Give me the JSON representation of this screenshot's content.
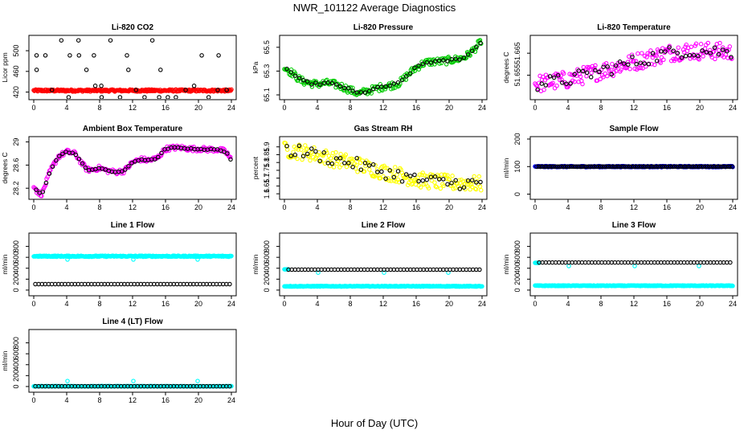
{
  "figure_title": "NWR_101122  Average Diagnostics",
  "xaxis_title": "Hour of Day (UTC)",
  "colors": {
    "black": "#000000",
    "red": "#ff0000",
    "green": "#00cc00",
    "magenta": "#ff00ff",
    "yellow": "#ffff00",
    "blue": "#0000ff",
    "cyan": "#00ffff"
  },
  "chart_data": [
    {
      "type": "scatter",
      "title": "Li-820 CO2",
      "ylabel": "Licor ppm",
      "xlim": [
        0,
        24
      ],
      "ylim": [
        410,
        525
      ],
      "xticks": [
        0,
        4,
        8,
        12,
        16,
        20,
        24
      ],
      "yticks": [
        420,
        460,
        500
      ],
      "series": [
        {
          "name": "all",
          "color": "#ff0000",
          "kind": "band",
          "y_center": 423,
          "y_spread": 2
        },
        {
          "name": "level1",
          "color": "#000000",
          "kind": "levels",
          "levels": [
            410,
            424,
            432,
            463,
            491,
            520
          ],
          "x_step": 1.0
        }
      ]
    },
    {
      "type": "scatter",
      "title": "Li-820 Pressure",
      "ylabel": "kPa",
      "xlim": [
        0,
        24
      ],
      "ylim": [
        65.08,
        65.58
      ],
      "xticks": [
        0,
        4,
        8,
        12,
        16,
        20,
        24
      ],
      "yticks": [
        65.1,
        65.3,
        65.5
      ],
      "series": [
        {
          "name": "all",
          "color": "#00cc00",
          "kind": "curve",
          "x": [
            0,
            1,
            2,
            3,
            4,
            5,
            6,
            7,
            8,
            9,
            10,
            11,
            12,
            13,
            14,
            15,
            16,
            17,
            18,
            19,
            20,
            21,
            22,
            23,
            24
          ],
          "y": [
            65.33,
            65.28,
            65.22,
            65.2,
            65.19,
            65.2,
            65.19,
            65.17,
            65.14,
            65.11,
            65.13,
            65.15,
            65.17,
            65.18,
            65.2,
            65.27,
            65.33,
            65.37,
            65.38,
            65.38,
            65.39,
            65.4,
            65.42,
            65.48,
            65.56
          ],
          "spread": 0.03
        },
        {
          "name": "level1",
          "color": "#000000",
          "kind": "curve_sparse",
          "x_step": 0.5,
          "spread": 0.01
        }
      ]
    },
    {
      "type": "scatter",
      "title": "Li-820 Temperature",
      "ylabel": "degrees C",
      "xlim": [
        0,
        24
      ],
      "ylim": [
        51.645,
        51.672
      ],
      "xticks": [
        0,
        4,
        8,
        12,
        16,
        20,
        24
      ],
      "yticks": [
        51.655,
        51.665
      ],
      "series": [
        {
          "name": "all",
          "color": "#ff00ff",
          "kind": "curve",
          "x": [
            0,
            2,
            4,
            6,
            8,
            10,
            12,
            14,
            16,
            18,
            20,
            22,
            24
          ],
          "y": [
            51.651,
            51.652,
            51.653,
            51.655,
            51.657,
            51.659,
            51.661,
            51.663,
            51.665,
            51.666,
            51.666,
            51.666,
            51.665
          ],
          "spread": 0.004
        },
        {
          "name": "level1",
          "color": "#000000",
          "kind": "curve_sparse",
          "x_step": 0.5,
          "spread": 0.003
        }
      ]
    },
    {
      "type": "scatter",
      "title": "Ambient Box Temperature",
      "ylabel": "degrees C",
      "xlim": [
        0,
        24
      ],
      "ylim": [
        28.05,
        29.05
      ],
      "xticks": [
        0,
        4,
        8,
        12,
        16,
        20,
        24
      ],
      "yticks": [
        28.2,
        28.6,
        29.0
      ],
      "series": [
        {
          "name": "all",
          "color": "#ff00ff",
          "kind": "curve",
          "x": [
            0,
            0.5,
            1,
            1.5,
            2,
            3,
            4,
            5,
            6,
            6.5,
            7,
            8,
            9,
            10,
            11,
            12,
            13,
            14,
            15,
            16,
            17,
            18,
            19,
            20,
            21,
            22,
            23,
            23.5,
            24
          ],
          "y": [
            28.25,
            28.12,
            28.1,
            28.3,
            28.5,
            28.75,
            28.83,
            28.8,
            28.6,
            28.52,
            28.52,
            28.55,
            28.5,
            28.48,
            28.5,
            28.65,
            28.7,
            28.68,
            28.72,
            28.88,
            28.9,
            28.9,
            28.88,
            28.88,
            28.87,
            28.87,
            28.85,
            28.8,
            28.68
          ],
          "spread": 0.04
        },
        {
          "name": "level1",
          "color": "#000000",
          "kind": "curve_sparse",
          "x_step": 0.4,
          "spread": 0.01
        }
      ]
    },
    {
      "type": "scatter",
      "title": "Gas Stream RH",
      "ylabel": "percent",
      "xlim": [
        0,
        24
      ],
      "ylim": [
        1.58,
        1.95
      ],
      "xticks": [
        0,
        4,
        8,
        12,
        16,
        20,
        24
      ],
      "yticks": [
        1.6,
        1.65,
        1.7,
        1.75,
        1.8,
        1.85,
        1.9
      ],
      "series": [
        {
          "name": "all",
          "color": "#ffff00",
          "kind": "curve",
          "x": [
            0,
            2,
            4,
            6,
            8,
            10,
            12,
            14,
            16,
            18,
            20,
            22,
            24
          ],
          "y": [
            1.88,
            1.87,
            1.85,
            1.82,
            1.8,
            1.77,
            1.74,
            1.72,
            1.69,
            1.68,
            1.67,
            1.67,
            1.66
          ],
          "spread": 0.05
        },
        {
          "name": "level1",
          "color": "#000000",
          "kind": "curve_sparse",
          "x_step": 0.5,
          "spread": 0.04
        }
      ]
    },
    {
      "type": "scatter",
      "title": "Sample Flow",
      "ylabel": "ml/min",
      "xlim": [
        0,
        24
      ],
      "ylim": [
        -10,
        200
      ],
      "xticks": [
        0,
        4,
        8,
        12,
        16,
        20,
        24
      ],
      "yticks": [
        0,
        100,
        200
      ],
      "series": [
        {
          "name": "all",
          "color": "#0000ff",
          "kind": "band",
          "y_center": 100,
          "y_spread": 2
        },
        {
          "name": "level1",
          "color": "#000000",
          "kind": "band_sparse",
          "y_center": 100,
          "x_step": 0.25
        }
      ]
    },
    {
      "type": "scatter",
      "title": "Line 1 Flow",
      "ylabel": "ml/min",
      "xlim": [
        0,
        24
      ],
      "ylim": [
        -60,
        1000
      ],
      "xticks": [
        0,
        4,
        8,
        12,
        16,
        20,
        24
      ],
      "yticks": [
        0,
        200,
        400,
        600,
        800
      ],
      "series": [
        {
          "name": "all",
          "color": "#00ffff",
          "kind": "band",
          "y_center": 620,
          "y_spread": 10,
          "outliers": [
            [
              4.1,
              560
            ],
            [
              12.1,
              560
            ],
            [
              19.9,
              560
            ]
          ]
        },
        {
          "name": "level1",
          "color": "#000000",
          "kind": "band_sparse",
          "y_center": 110,
          "x_step": 0.4
        }
      ]
    },
    {
      "type": "scatter",
      "title": "Line 2 Flow",
      "ylabel": "ml/min",
      "xlim": [
        0,
        24
      ],
      "ylim": [
        -60,
        1000
      ],
      "xticks": [
        0,
        4,
        8,
        12,
        16,
        20,
        24
      ],
      "yticks": [
        0,
        200,
        400,
        600,
        800
      ],
      "series": [
        {
          "name": "all",
          "color": "#00ffff",
          "kind": "band",
          "y_center": 70,
          "y_spread": 6,
          "extra_band": {
            "y_center": 380,
            "x_start": 0,
            "x_end": 0.5
          },
          "outliers": [
            [
              4.1,
              320
            ],
            [
              12.1,
              320
            ],
            [
              19.9,
              320
            ]
          ]
        },
        {
          "name": "level1",
          "color": "#000000",
          "kind": "band_sparse",
          "y_center": 375,
          "x_step": 0.4,
          "x_start": 0.5
        }
      ]
    },
    {
      "type": "scatter",
      "title": "Line 3 Flow",
      "ylabel": "ml/min",
      "xlim": [
        0,
        24
      ],
      "ylim": [
        -60,
        1000
      ],
      "xticks": [
        0,
        4,
        8,
        12,
        16,
        20,
        24
      ],
      "yticks": [
        0,
        200,
        400,
        600,
        800
      ],
      "series": [
        {
          "name": "all",
          "color": "#00ffff",
          "kind": "band",
          "y_center": 80,
          "y_spread": 6,
          "extra_band": {
            "y_center": 500,
            "x_start": 0,
            "x_end": 0.5
          },
          "outliers": [
            [
              4.1,
              440
            ],
            [
              12.1,
              440
            ],
            [
              19.9,
              440
            ]
          ]
        },
        {
          "name": "level1",
          "color": "#000000",
          "kind": "band_sparse",
          "y_center": 505,
          "x_step": 0.4,
          "x_start": 0.5
        }
      ]
    },
    {
      "type": "scatter",
      "title": "Line 4 (LT) Flow",
      "ylabel": "ml/min",
      "xlim": [
        0,
        24
      ],
      "ylim": [
        -60,
        1000
      ],
      "xticks": [
        0,
        4,
        8,
        12,
        16,
        20,
        24
      ],
      "yticks": [
        0,
        200,
        400,
        600,
        800
      ],
      "series": [
        {
          "name": "all",
          "color": "#00ffff",
          "kind": "band",
          "y_center": 5,
          "y_spread": 3,
          "outliers": [
            [
              4.1,
              100
            ],
            [
              12.1,
              100
            ],
            [
              19.9,
              100
            ]
          ]
        },
        {
          "name": "level1",
          "color": "#000000",
          "kind": "band_sparse",
          "y_center": 5,
          "x_step": 0.4
        }
      ]
    }
  ]
}
